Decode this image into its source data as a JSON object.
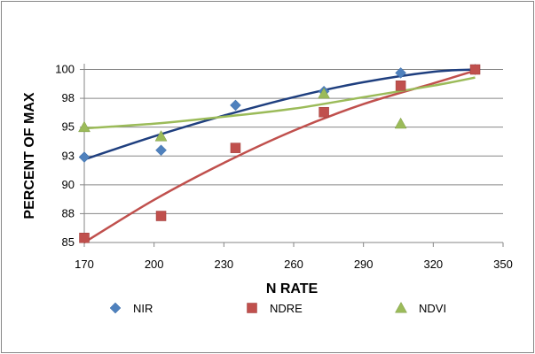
{
  "chart_data": {
    "type": "scatter",
    "title": "",
    "xlabel": "N RATE",
    "ylabel": "PERCENT OF MAX",
    "xlim": [
      170,
      350
    ],
    "ylim": [
      85,
      100.5
    ],
    "x_ticks": [
      170,
      200,
      230,
      260,
      290,
      320,
      350
    ],
    "y_ticks": [
      {
        "value": 85,
        "label": "85"
      },
      {
        "value": 87.5,
        "label": "88"
      },
      {
        "value": 90,
        "label": "90"
      },
      {
        "value": 92.5,
        "label": "93"
      },
      {
        "value": 95,
        "label": "95"
      },
      {
        "value": 97.5,
        "label": "98"
      },
      {
        "value": 100,
        "label": "100"
      }
    ],
    "grid": "horizontal",
    "legend_position": "bottom",
    "series": [
      {
        "name": "NIR",
        "marker": "diamond",
        "color": "#4F81BD",
        "trend_color": "#1F3F7F",
        "x": [
          170,
          203,
          235,
          273,
          306,
          338
        ],
        "y": [
          92.4,
          93.0,
          96.9,
          98.1,
          99.7,
          100.0
        ],
        "trend": [
          {
            "x": 170,
            "y": 92.2
          },
          {
            "x": 200,
            "y": 94.2
          },
          {
            "x": 230,
            "y": 96.0
          },
          {
            "x": 260,
            "y": 97.6
          },
          {
            "x": 290,
            "y": 98.9
          },
          {
            "x": 320,
            "y": 99.8
          },
          {
            "x": 338,
            "y": 100.0
          }
        ]
      },
      {
        "name": "NDRE",
        "marker": "square",
        "color": "#C0504D",
        "trend_color": "#C0504D",
        "x": [
          170,
          203,
          235,
          273,
          306,
          338
        ],
        "y": [
          85.4,
          87.3,
          93.2,
          96.3,
          98.6,
          100.0
        ],
        "trend": [
          {
            "x": 170,
            "y": 85.0
          },
          {
            "x": 200,
            "y": 88.7
          },
          {
            "x": 230,
            "y": 91.9
          },
          {
            "x": 260,
            "y": 94.7
          },
          {
            "x": 290,
            "y": 97.0
          },
          {
            "x": 320,
            "y": 98.8
          },
          {
            "x": 338,
            "y": 99.9
          }
        ]
      },
      {
        "name": "NDVI",
        "marker": "triangle",
        "color": "#9BBB59",
        "trend_color": "#9BBB59",
        "x": [
          170,
          203,
          273,
          306
        ],
        "y": [
          95.0,
          94.2,
          97.9,
          95.3
        ],
        "trend": [
          {
            "x": 170,
            "y": 94.9
          },
          {
            "x": 200,
            "y": 95.3
          },
          {
            "x": 230,
            "y": 95.9
          },
          {
            "x": 260,
            "y": 96.6
          },
          {
            "x": 290,
            "y": 97.6
          },
          {
            "x": 320,
            "y": 98.6
          },
          {
            "x": 338,
            "y": 99.3
          }
        ]
      }
    ]
  }
}
